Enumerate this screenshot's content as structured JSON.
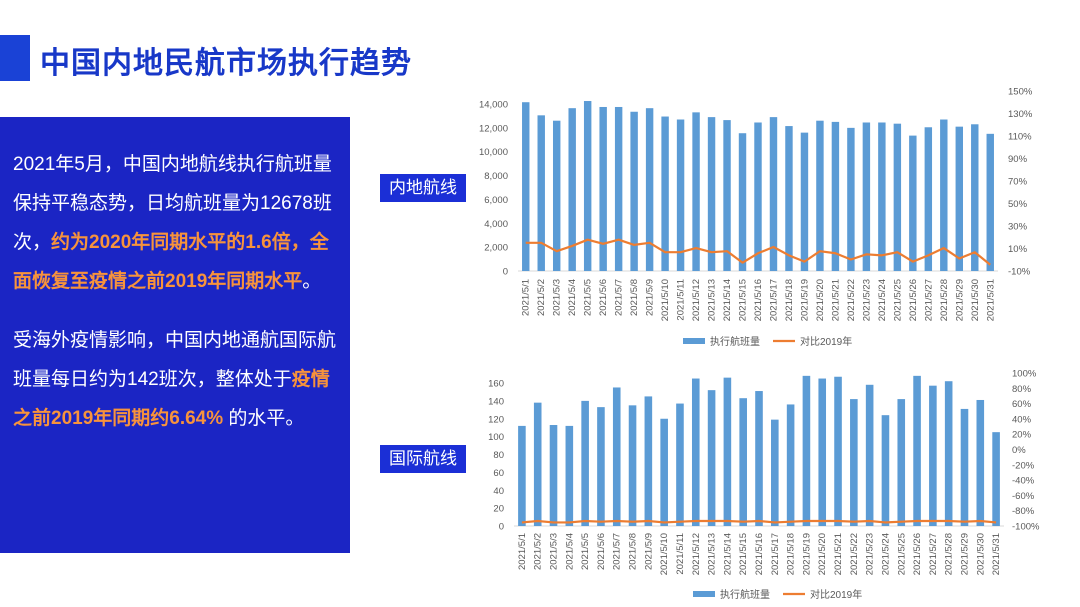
{
  "slide": {
    "title": "中国内地民航市场执行趋势"
  },
  "panel": {
    "p1_a": "2021年5月，中国内地航线执行航班量保持平稳态势，日均航班量为12678班次，",
    "p1_hl": "约为2020年同期水平的1.6倍，全面恢复至疫情之前2019年同期水平",
    "p1_b": "。",
    "p2_a": "受海外疫情影响，中国内地通航国际航班量每日约为142班次，整体处于",
    "p2_hl": "疫情之前2019年同期约6.64%",
    "p2_b": " 的水平。"
  },
  "labels": {
    "domestic": "内地航线",
    "international": "国际航线"
  },
  "colors": {
    "bar": "#5b9bd5",
    "line": "#ed7d31",
    "title": "#1838c8",
    "panel": "#1b25c4",
    "highlight": "#f7933c"
  },
  "chart_data": [
    {
      "type": "bar",
      "name": "domestic",
      "categories": [
        "2021/5/1",
        "2021/5/2",
        "2021/5/3",
        "2021/5/4",
        "2021/5/5",
        "2021/5/6",
        "2021/5/7",
        "2021/5/8",
        "2021/5/9",
        "2021/5/10",
        "2021/5/11",
        "2021/5/12",
        "2021/5/13",
        "2021/5/14",
        "2021/5/15",
        "2021/5/16",
        "2021/5/17",
        "2021/5/18",
        "2021/5/19",
        "2021/5/20",
        "2021/5/21",
        "2021/5/22",
        "2021/5/23",
        "2021/5/24",
        "2021/5/25",
        "2021/5/26",
        "2021/5/27",
        "2021/5/28",
        "2021/5/29",
        "2021/5/30",
        "2021/5/31"
      ],
      "series": [
        {
          "name": "执行航班量",
          "axis": "left",
          "values": [
            14150,
            13050,
            12600,
            13650,
            14250,
            13750,
            13750,
            13350,
            13650,
            12950,
            12700,
            13300,
            12900,
            12650,
            11550,
            12450,
            12900,
            12150,
            11600,
            12600,
            12500,
            12000,
            12450,
            12450,
            12350,
            11350,
            12050,
            12700,
            12100,
            12300,
            11500
          ]
        },
        {
          "name": "对比2019年",
          "axis": "right",
          "values": [
            17,
            17,
            9,
            14,
            20,
            16,
            20,
            15,
            17,
            8,
            8,
            12,
            8,
            9,
            -2,
            7,
            13,
            5,
            -1,
            9,
            7,
            1,
            6,
            5,
            8,
            -1,
            5,
            12,
            2,
            8,
            -4
          ]
        }
      ],
      "left_ticks": [
        "14,000",
        "12,000",
        "10,000",
        "8,000",
        "6,000",
        "4,000",
        "2,000",
        "0"
      ],
      "right_ticks": [
        "150%",
        "130%",
        "110%",
        "90%",
        "70%",
        "50%",
        "30%",
        "10%",
        "-10%"
      ],
      "ylim_left": [
        0,
        14000
      ],
      "ylim_right": [
        -10,
        150
      ],
      "legend": [
        "执行航班量",
        "对比2019年"
      ],
      "legend_position": "bottom",
      "grid": false
    },
    {
      "type": "bar",
      "name": "international",
      "categories": [
        "2021/5/1",
        "2021/5/2",
        "2021/5/3",
        "2021/5/4",
        "2021/5/5",
        "2021/5/6",
        "2021/5/7",
        "2021/5/8",
        "2021/5/9",
        "2021/5/10",
        "2021/5/11",
        "2021/5/12",
        "2021/5/13",
        "2021/5/14",
        "2021/5/15",
        "2021/5/16",
        "2021/5/17",
        "2021/5/18",
        "2021/5/19",
        "2021/5/20",
        "2021/5/21",
        "2021/5/22",
        "2021/5/23",
        "2021/5/24",
        "2021/5/25",
        "2021/5/26",
        "2021/5/27",
        "2021/5/28",
        "2021/5/29",
        "2021/5/30",
        "2021/5/31"
      ],
      "series": [
        {
          "name": "执行航班量",
          "axis": "left",
          "values": [
            112,
            138,
            113,
            112,
            140,
            133,
            155,
            135,
            145,
            120,
            137,
            165,
            152,
            166,
            143,
            151,
            119,
            136,
            168,
            165,
            167,
            142,
            158,
            124,
            142,
            168,
            157,
            162,
            131,
            141,
            105
          ]
        },
        {
          "name": "对比2019年",
          "axis": "right",
          "values": [
            -95,
            -93,
            -95,
            -95,
            -93,
            -94,
            -93,
            -94,
            -93,
            -95,
            -94,
            -93,
            -93,
            -93,
            -94,
            -93,
            -95,
            -94,
            -93,
            -93,
            -93,
            -94,
            -93,
            -95,
            -94,
            -93,
            -93,
            -93,
            -94,
            -93,
            -95
          ]
        }
      ],
      "left_ticks": [
        "160",
        "140",
        "120",
        "100",
        "80",
        "60",
        "40",
        "20",
        "0"
      ],
      "right_ticks": [
        "100%",
        "80%",
        "60%",
        "40%",
        "20%",
        "0%",
        "-20%",
        "-40%",
        "-60%",
        "-80%",
        "-100%"
      ],
      "ylim_left": [
        0,
        160
      ],
      "ylim_right": [
        -100,
        100
      ],
      "legend": [
        "执行航班量",
        "对比2019年"
      ],
      "legend_position": "bottom",
      "grid": false
    }
  ]
}
